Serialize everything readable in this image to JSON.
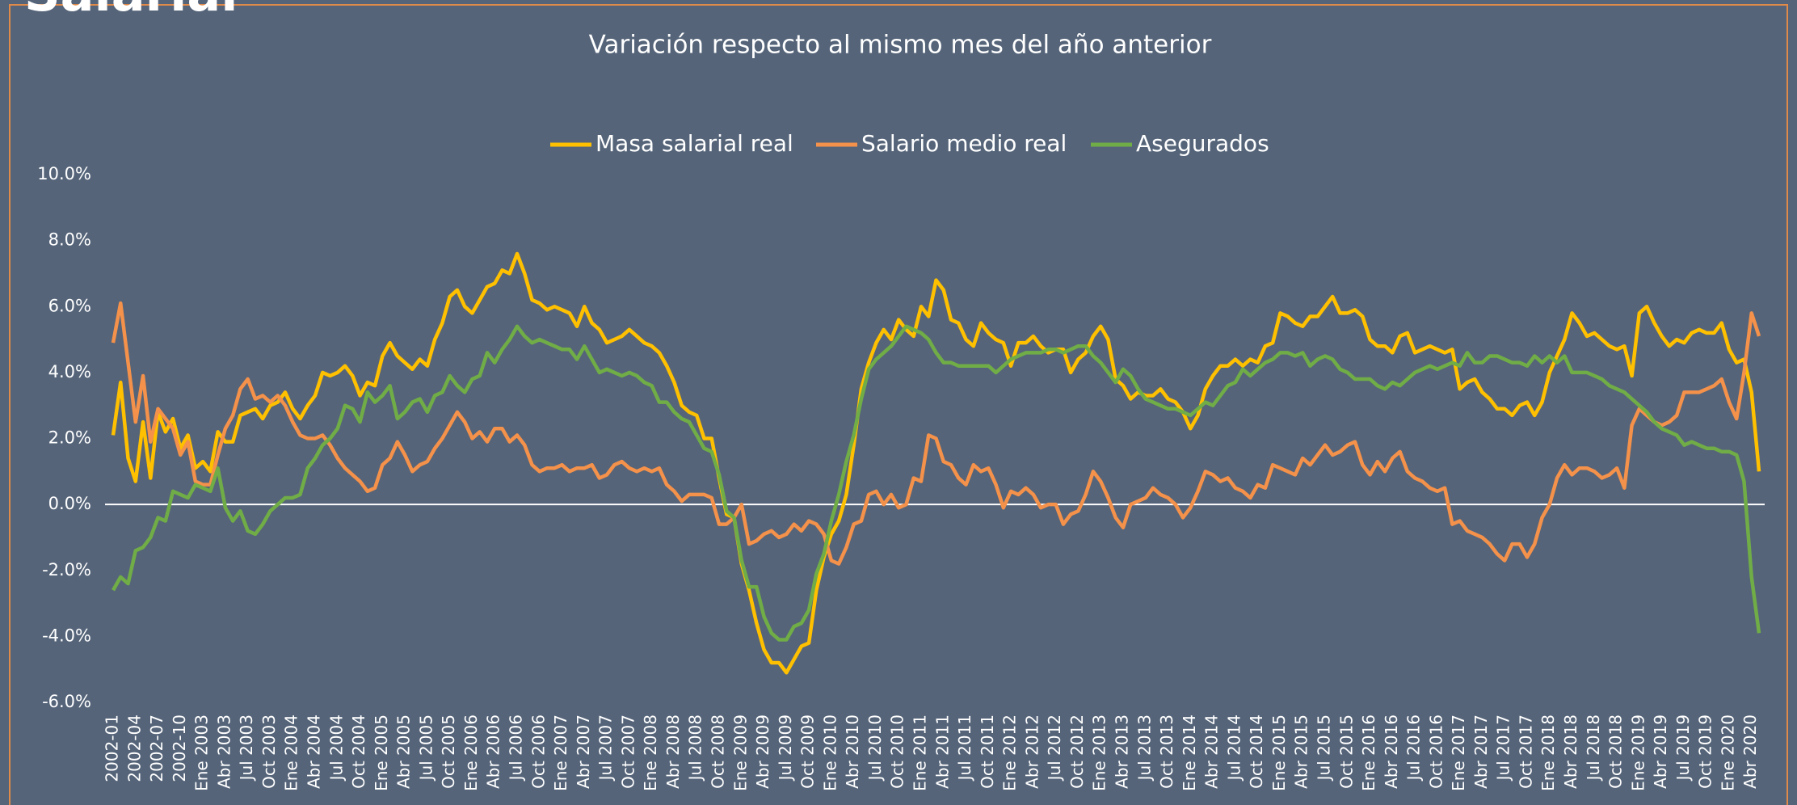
{
  "heading": "Salarial",
  "chart_data": {
    "type": "line",
    "title": "Variación respecto al mismo mes del año anterior",
    "legend": "top",
    "zero_line": true,
    "ylim": [
      -6,
      10
    ],
    "yticks": [
      {
        "value": -6,
        "label": "-6.0%"
      },
      {
        "value": -4,
        "label": "-4.0%"
      },
      {
        "value": -2,
        "label": "-2.0%"
      },
      {
        "value": 0,
        "label": "0.0%"
      },
      {
        "value": 2,
        "label": "2.0%"
      },
      {
        "value": 4,
        "label": "4.0%"
      },
      {
        "value": 6,
        "label": "6.0%"
      },
      {
        "value": 8,
        "label": "8.0%"
      },
      {
        "value": 10,
        "label": "10.0%"
      }
    ],
    "categories": [
      "2002-01",
      null,
      null,
      "2002-04",
      null,
      null,
      "2002-07",
      null,
      null,
      "2002-10",
      null,
      null,
      "Ene 2003",
      null,
      null,
      "Abr 2003",
      null,
      null,
      "Jul 2003",
      null,
      null,
      "Oct 2003",
      null,
      null,
      "Ene 2004",
      null,
      null,
      "Abr 2004",
      null,
      null,
      "Jul 2004",
      null,
      null,
      "Oct 2004",
      null,
      null,
      "Ene 2005",
      null,
      null,
      "Abr 2005",
      null,
      null,
      "Jul 2005",
      null,
      null,
      "Oct 2005",
      null,
      null,
      "Ene 2006",
      null,
      null,
      "Abr 2006",
      null,
      null,
      "Jul 2006",
      null,
      null,
      "Oct 2006",
      null,
      null,
      "Ene 2007",
      null,
      null,
      "Abr 2007",
      null,
      null,
      "Jul 2007",
      null,
      null,
      "Oct 2007",
      null,
      null,
      "Ene 2008",
      null,
      null,
      "Abr 2008",
      null,
      null,
      "Jul 2008",
      null,
      null,
      "Oct 2008",
      null,
      null,
      "Ene 2009",
      null,
      null,
      "Abr 2009",
      null,
      null,
      "Jul 2009",
      null,
      null,
      "Oct 2009",
      null,
      null,
      "Ene 2010",
      null,
      null,
      "Abr 2010",
      null,
      null,
      "Jul 2010",
      null,
      null,
      "Oct 2010",
      null,
      null,
      "Ene 2011",
      null,
      null,
      "Abr 2011",
      null,
      null,
      "Jul 2011",
      null,
      null,
      "Oct 2011",
      null,
      null,
      "Ene 2012",
      null,
      null,
      "Abr 2012",
      null,
      null,
      "Jul 2012",
      null,
      null,
      "Oct 2012",
      null,
      null,
      "Ene 2013",
      null,
      null,
      "Abr 2013",
      null,
      null,
      "Jul 2013",
      null,
      null,
      "Oct 2013",
      null,
      null,
      "Ene 2014",
      null,
      null,
      "Abr 2014",
      null,
      null,
      "Jul 2014",
      null,
      null,
      "Oct 2014",
      null,
      null,
      "Ene 2015",
      null,
      null,
      "Abr 2015",
      null,
      null,
      "Jul 2015",
      null,
      null,
      "Oct 2015",
      null,
      null,
      "Ene 2016",
      null,
      null,
      "Abr 2016",
      null,
      null,
      "Jul 2016",
      null,
      null,
      "Oct 2016",
      null,
      null,
      "Ene 2017",
      null,
      null,
      "Abr 2017",
      null,
      null,
      "Jul 2017",
      null,
      null,
      "Oct 2017",
      null,
      null,
      "Ene 2018",
      null,
      null,
      "Abr 2018",
      null,
      null,
      "Jul 2018",
      null,
      null,
      "Oct 2018",
      null,
      null,
      "Ene 2019",
      null,
      null,
      "Abr 2019",
      null,
      null,
      "Jul 2019",
      null,
      null,
      "Oct 2019",
      null,
      null,
      "Ene 2020",
      null,
      null,
      "Abr 2020",
      null
    ],
    "series": [
      {
        "name": "Masa salarial real",
        "color": "#ffc000",
        "values": [
          2.1,
          3.7,
          1.4,
          0.7,
          2.5,
          0.8,
          2.8,
          2.2,
          2.6,
          1.7,
          2.1,
          1.1,
          1.3,
          1.0,
          2.2,
          1.9,
          1.9,
          2.7,
          2.8,
          2.9,
          2.6,
          3.0,
          3.1,
          3.4,
          2.9,
          2.6,
          3.0,
          3.3,
          4.0,
          3.9,
          4.0,
          4.2,
          3.9,
          3.3,
          3.7,
          3.6,
          4.5,
          4.9,
          4.5,
          4.3,
          4.1,
          4.4,
          4.2,
          5.0,
          5.5,
          6.3,
          6.5,
          6.0,
          5.8,
          6.2,
          6.6,
          6.7,
          7.1,
          7.0,
          7.6,
          7.0,
          6.2,
          6.1,
          5.9,
          6.0,
          5.9,
          5.8,
          5.4,
          6.0,
          5.5,
          5.3,
          4.9,
          5.0,
          5.1,
          5.3,
          5.1,
          4.9,
          4.8,
          4.6,
          4.2,
          3.7,
          3.0,
          2.8,
          2.7,
          2.0,
          2.0,
          0.8,
          -0.3,
          -0.4,
          -1.8,
          -2.6,
          -3.6,
          -4.4,
          -4.8,
          -4.8,
          -5.1,
          -4.7,
          -4.3,
          -4.2,
          -2.6,
          -1.6,
          -0.9,
          -0.5,
          0.3,
          1.8,
          3.5,
          4.3,
          4.9,
          5.3,
          5.0,
          5.6,
          5.3,
          5.1,
          6.0,
          5.7,
          6.8,
          6.5,
          5.6,
          5.5,
          5.0,
          4.8,
          5.5,
          5.2,
          5.0,
          4.9,
          4.2,
          4.9,
          4.9,
          5.1,
          4.8,
          4.6,
          4.7,
          4.7,
          4.0,
          4.4,
          4.6,
          5.1,
          5.4,
          5.0,
          3.8,
          3.6,
          3.2,
          3.4,
          3.3,
          3.3,
          3.5,
          3.2,
          3.1,
          2.8,
          2.3,
          2.7,
          3.5,
          3.9,
          4.2,
          4.2,
          4.4,
          4.2,
          4.4,
          4.3,
          4.8,
          4.9,
          5.8,
          5.7,
          5.5,
          5.4,
          5.7,
          5.7,
          6.0,
          6.3,
          5.8,
          5.8,
          5.9,
          5.7,
          5.0,
          4.8,
          4.8,
          4.6,
          5.1,
          5.2,
          4.6,
          4.7,
          4.8,
          4.7,
          4.6,
          4.7,
          3.5,
          3.7,
          3.8,
          3.4,
          3.2,
          2.9,
          2.9,
          2.7,
          3.0,
          3.1,
          2.7,
          3.1,
          4.0,
          4.5,
          5.0,
          5.8,
          5.5,
          5.1,
          5.2,
          5.0,
          4.8,
          4.7,
          4.8,
          3.9,
          5.8,
          6.0,
          5.5,
          5.1,
          4.8,
          5.0,
          4.9,
          5.2,
          5.3,
          5.2,
          5.2,
          5.5,
          4.7,
          4.3,
          4.4,
          3.4,
          1.0
        ]
      },
      {
        "name": "Salario medio real",
        "color": "#f4914a",
        "values": [
          4.9,
          6.1,
          4.3,
          2.5,
          3.9,
          1.9,
          2.9,
          2.6,
          2.3,
          1.5,
          1.9,
          0.7,
          0.6,
          0.6,
          1.5,
          2.3,
          2.7,
          3.5,
          3.8,
          3.2,
          3.3,
          3.1,
          3.3,
          3.0,
          2.5,
          2.1,
          2.0,
          2.0,
          2.1,
          1.8,
          1.4,
          1.1,
          0.9,
          0.7,
          0.4,
          0.5,
          1.2,
          1.4,
          1.9,
          1.5,
          1.0,
          1.2,
          1.3,
          1.7,
          2.0,
          2.4,
          2.8,
          2.5,
          2.0,
          2.2,
          1.9,
          2.3,
          2.3,
          1.9,
          2.1,
          1.8,
          1.2,
          1.0,
          1.1,
          1.1,
          1.2,
          1.0,
          1.1,
          1.1,
          1.2,
          0.8,
          0.9,
          1.2,
          1.3,
          1.1,
          1.0,
          1.1,
          1.0,
          1.1,
          0.6,
          0.4,
          0.1,
          0.3,
          0.3,
          0.3,
          0.2,
          -0.6,
          -0.6,
          -0.4,
          0.0,
          -1.2,
          -1.1,
          -0.9,
          -0.8,
          -1.0,
          -0.9,
          -0.6,
          -0.8,
          -0.5,
          -0.6,
          -0.9,
          -1.7,
          -1.8,
          -1.3,
          -0.6,
          -0.5,
          0.3,
          0.4,
          0.0,
          0.3,
          -0.1,
          0.0,
          0.8,
          0.7,
          2.1,
          2.0,
          1.3,
          1.2,
          0.8,
          0.6,
          1.2,
          1.0,
          1.1,
          0.6,
          -0.1,
          0.4,
          0.3,
          0.5,
          0.3,
          -0.1,
          0.0,
          0.0,
          -0.6,
          -0.3,
          -0.2,
          0.3,
          1.0,
          0.7,
          0.2,
          -0.4,
          -0.7,
          0.0,
          0.1,
          0.2,
          0.5,
          0.3,
          0.2,
          0.0,
          -0.4,
          -0.1,
          0.4,
          1.0,
          0.9,
          0.7,
          0.8,
          0.5,
          0.4,
          0.2,
          0.6,
          0.5,
          1.2,
          1.1,
          1.0,
          0.9,
          1.4,
          1.2,
          1.5,
          1.8,
          1.5,
          1.6,
          1.8,
          1.9,
          1.2,
          0.9,
          1.3,
          1.0,
          1.4,
          1.6,
          1.0,
          0.8,
          0.7,
          0.5,
          0.4,
          0.5,
          -0.6,
          -0.5,
          -0.8,
          -0.9,
          -1.0,
          -1.2,
          -1.5,
          -1.7,
          -1.2,
          -1.2,
          -1.6,
          -1.2,
          -0.4,
          0.0,
          0.8,
          1.2,
          0.9,
          1.1,
          1.1,
          1.0,
          0.8,
          0.9,
          1.1,
          0.5,
          2.4,
          2.9,
          2.7,
          2.5,
          2.4,
          2.5,
          2.7,
          3.4,
          3.4,
          3.4,
          3.5,
          3.6,
          3.8,
          3.1,
          2.6,
          4.0,
          5.8,
          5.1
        ]
      },
      {
        "name": "Asegurados",
        "color": "#70ad47",
        "values": [
          -2.6,
          -2.2,
          -2.4,
          -1.4,
          -1.3,
          -1.0,
          -0.4,
          -0.5,
          0.4,
          0.3,
          0.2,
          0.6,
          0.5,
          0.4,
          1.1,
          -0.1,
          -0.5,
          -0.2,
          -0.8,
          -0.9,
          -0.6,
          -0.2,
          0.0,
          0.2,
          0.2,
          0.3,
          1.1,
          1.4,
          1.8,
          2.0,
          2.3,
          3.0,
          2.9,
          2.5,
          3.4,
          3.1,
          3.3,
          3.6,
          2.6,
          2.8,
          3.1,
          3.2,
          2.8,
          3.3,
          3.4,
          3.9,
          3.6,
          3.4,
          3.8,
          3.9,
          4.6,
          4.3,
          4.7,
          5.0,
          5.4,
          5.1,
          4.9,
          5.0,
          4.9,
          4.8,
          4.7,
          4.7,
          4.4,
          4.8,
          4.4,
          4.0,
          4.1,
          4.0,
          3.9,
          4.0,
          3.9,
          3.7,
          3.6,
          3.1,
          3.1,
          2.8,
          2.6,
          2.5,
          2.1,
          1.7,
          1.6,
          0.9,
          -0.2,
          -0.4,
          -1.7,
          -2.5,
          -2.5,
          -3.4,
          -3.9,
          -4.1,
          -4.1,
          -3.7,
          -3.6,
          -3.2,
          -2.1,
          -1.5,
          -0.5,
          0.3,
          1.3,
          2.1,
          3.2,
          4.1,
          4.4,
          4.6,
          4.8,
          5.1,
          5.4,
          5.3,
          5.2,
          5.0,
          4.6,
          4.3,
          4.3,
          4.2,
          4.2,
          4.2,
          4.2,
          4.2,
          4.0,
          4.2,
          4.4,
          4.5,
          4.6,
          4.6,
          4.6,
          4.7,
          4.7,
          4.6,
          4.7,
          4.8,
          4.8,
          4.5,
          4.3,
          4.0,
          3.7,
          4.1,
          3.9,
          3.5,
          3.2,
          3.1,
          3.0,
          2.9,
          2.9,
          2.8,
          2.7,
          2.9,
          3.1,
          3.0,
          3.3,
          3.6,
          3.7,
          4.1,
          3.9,
          4.1,
          4.3,
          4.4,
          4.6,
          4.6,
          4.5,
          4.6,
          4.2,
          4.4,
          4.5,
          4.4,
          4.1,
          4.0,
          3.8,
          3.8,
          3.8,
          3.6,
          3.5,
          3.7,
          3.6,
          3.8,
          4.0,
          4.1,
          4.2,
          4.1,
          4.2,
          4.3,
          4.2,
          4.6,
          4.3,
          4.3,
          4.5,
          4.5,
          4.4,
          4.3,
          4.3,
          4.2,
          4.5,
          4.3,
          4.5,
          4.3,
          4.5,
          4.0,
          4.0,
          4.0,
          3.9,
          3.8,
          3.6,
          3.5,
          3.4,
          3.2,
          3.0,
          2.8,
          2.5,
          2.3,
          2.2,
          2.1,
          1.8,
          1.9,
          1.8,
          1.7,
          1.7,
          1.6,
          1.6,
          1.5,
          0.7,
          -2.2,
          -3.9
        ]
      }
    ]
  }
}
